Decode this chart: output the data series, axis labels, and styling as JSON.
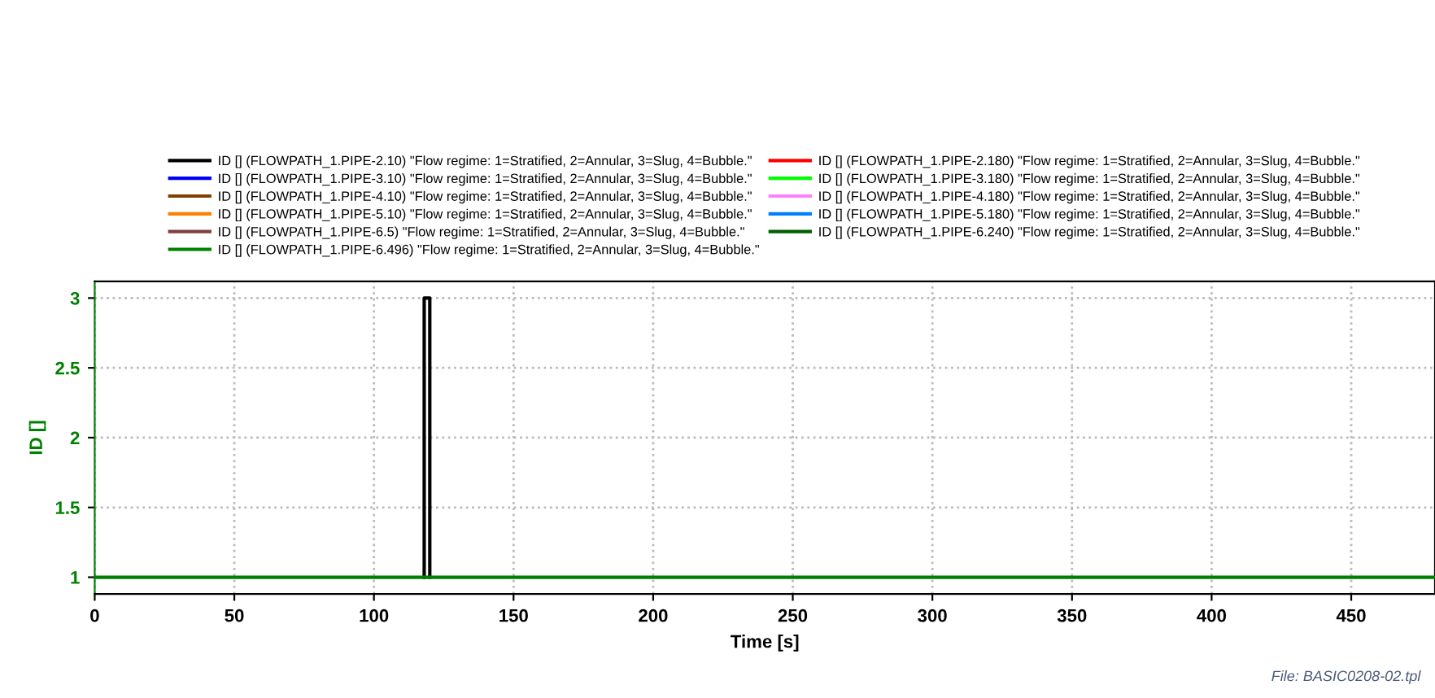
{
  "chart_data": {
    "type": "line",
    "xlabel": "Time [s]",
    "ylabel": "ID []",
    "xlim": [
      0,
      480
    ],
    "ylim": [
      0.88,
      3.12
    ],
    "xticks": [
      0,
      50,
      100,
      150,
      200,
      250,
      300,
      350,
      400,
      450
    ],
    "yticks": [
      1,
      1.5,
      2,
      2.5,
      3
    ],
    "grid": true,
    "legend": "top",
    "line_style": "solid",
    "marker": "none",
    "annotations": [
      "File: BASIC0208-02.tpl"
    ],
    "series": [
      {
        "name": "ID [] (FLOWPATH_1.PIPE-2.10) \"Flow regime: 1=Stratified, 2=Annular, 3=Slug, 4=Bubble.\"",
        "color": "#000000",
        "x": [
          118,
          118,
          120,
          120
        ],
        "values": [
          1,
          3,
          3,
          1
        ]
      },
      {
        "name": "ID [] (FLOWPATH_1.PIPE-3.10) \"Flow regime: 1=Stratified, 2=Annular, 3=Slug, 4=Bubble.\"",
        "color": "#0000ff"
      },
      {
        "name": "ID [] (FLOWPATH_1.PIPE-4.10) \"Flow regime: 1=Stratified, 2=Annular, 3=Slug, 4=Bubble.\"",
        "color": "#804000"
      },
      {
        "name": "ID [] (FLOWPATH_1.PIPE-5.10) \"Flow regime: 1=Stratified, 2=Annular, 3=Slug, 4=Bubble.\"",
        "color": "#ff8000"
      },
      {
        "name": "ID [] (FLOWPATH_1.PIPE-6.5) \"Flow regime: 1=Stratified, 2=Annular, 3=Slug, 4=Bubble.\"",
        "color": "#804040"
      },
      {
        "name": "ID [] (FLOWPATH_1.PIPE-6.496) \"Flow regime: 1=Stratified, 2=Annular, 3=Slug, 4=Bubble.\"",
        "color": "#008000",
        "x": [
          0,
          480
        ],
        "values": [
          1,
          1
        ]
      },
      {
        "name": "ID [] (FLOWPATH_1.PIPE-2.180) \"Flow regime: 1=Stratified, 2=Annular, 3=Slug, 4=Bubble.\"",
        "color": "#ff0000"
      },
      {
        "name": "ID [] (FLOWPATH_1.PIPE-3.180) \"Flow regime: 1=Stratified, 2=Annular, 3=Slug, 4=Bubble.\"",
        "color": "#00ff00"
      },
      {
        "name": "ID [] (FLOWPATH_1.PIPE-4.180) \"Flow regime: 1=Stratified, 2=Annular, 3=Slug, 4=Bubble.\"",
        "color": "#ff80ff"
      },
      {
        "name": "ID [] (FLOWPATH_1.PIPE-5.180) \"Flow regime: 1=Stratified, 2=Annular, 3=Slug, 4=Bubble.\"",
        "color": "#0080ff"
      },
      {
        "name": "ID [] (FLOWPATH_1.PIPE-6.240) \"Flow regime: 1=Stratified, 2=Annular, 3=Slug, 4=Bubble.\"",
        "color": "#006000"
      }
    ]
  }
}
